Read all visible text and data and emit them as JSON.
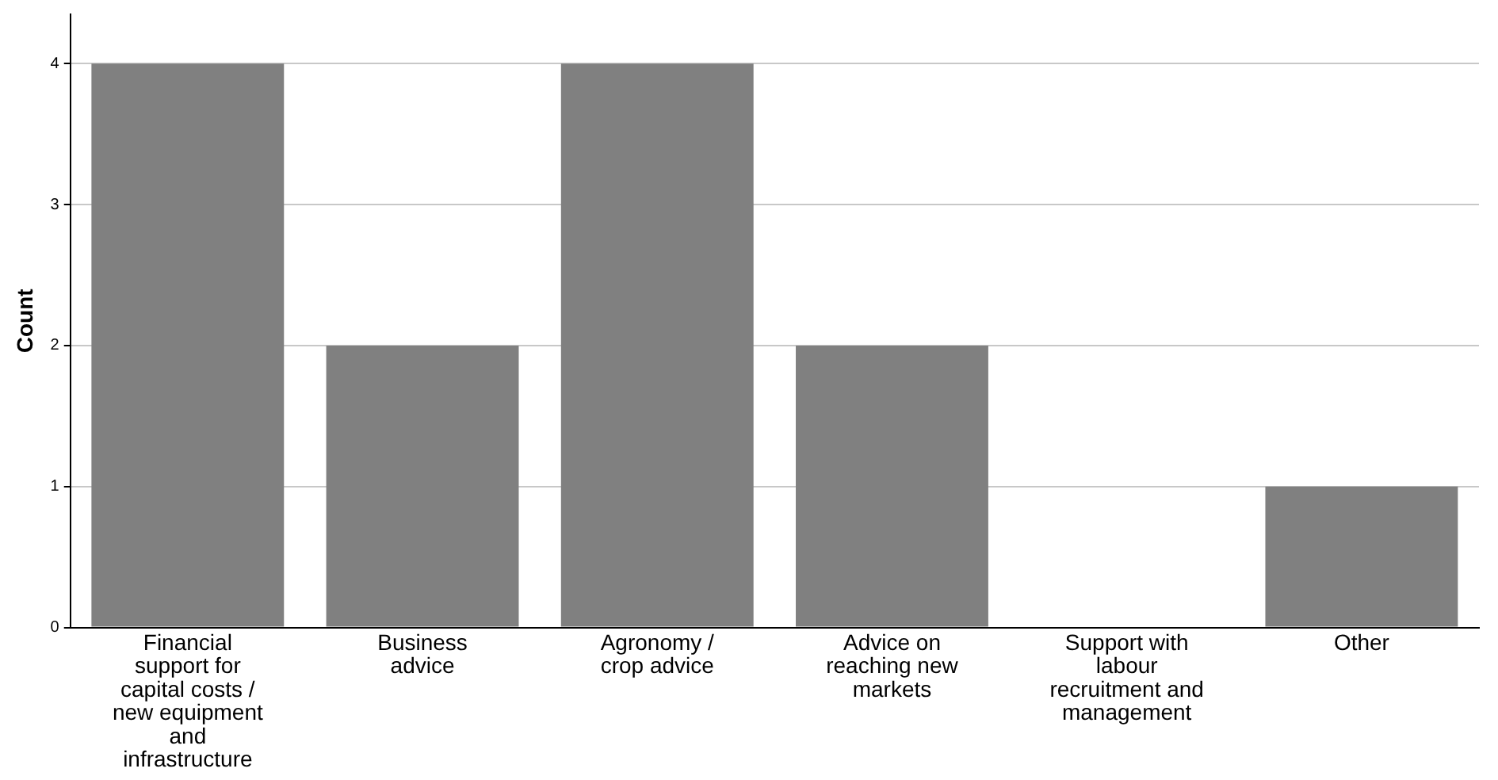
{
  "chart_data": {
    "type": "bar",
    "ylabel": "Count",
    "categories": [
      "Financial support for capital costs / new equipment and infrastructure",
      "Business advice",
      "Agronomy / crop advice",
      "Advice on reaching new markets",
      "Support with labour recruitment and management",
      "Other"
    ],
    "values": [
      4,
      2,
      4,
      2,
      0,
      1
    ],
    "color": "#808080",
    "ylim": [
      0,
      4.35
    ],
    "yticks": [
      0,
      1,
      2,
      3,
      4
    ],
    "grid": "y",
    "legend": false
  }
}
